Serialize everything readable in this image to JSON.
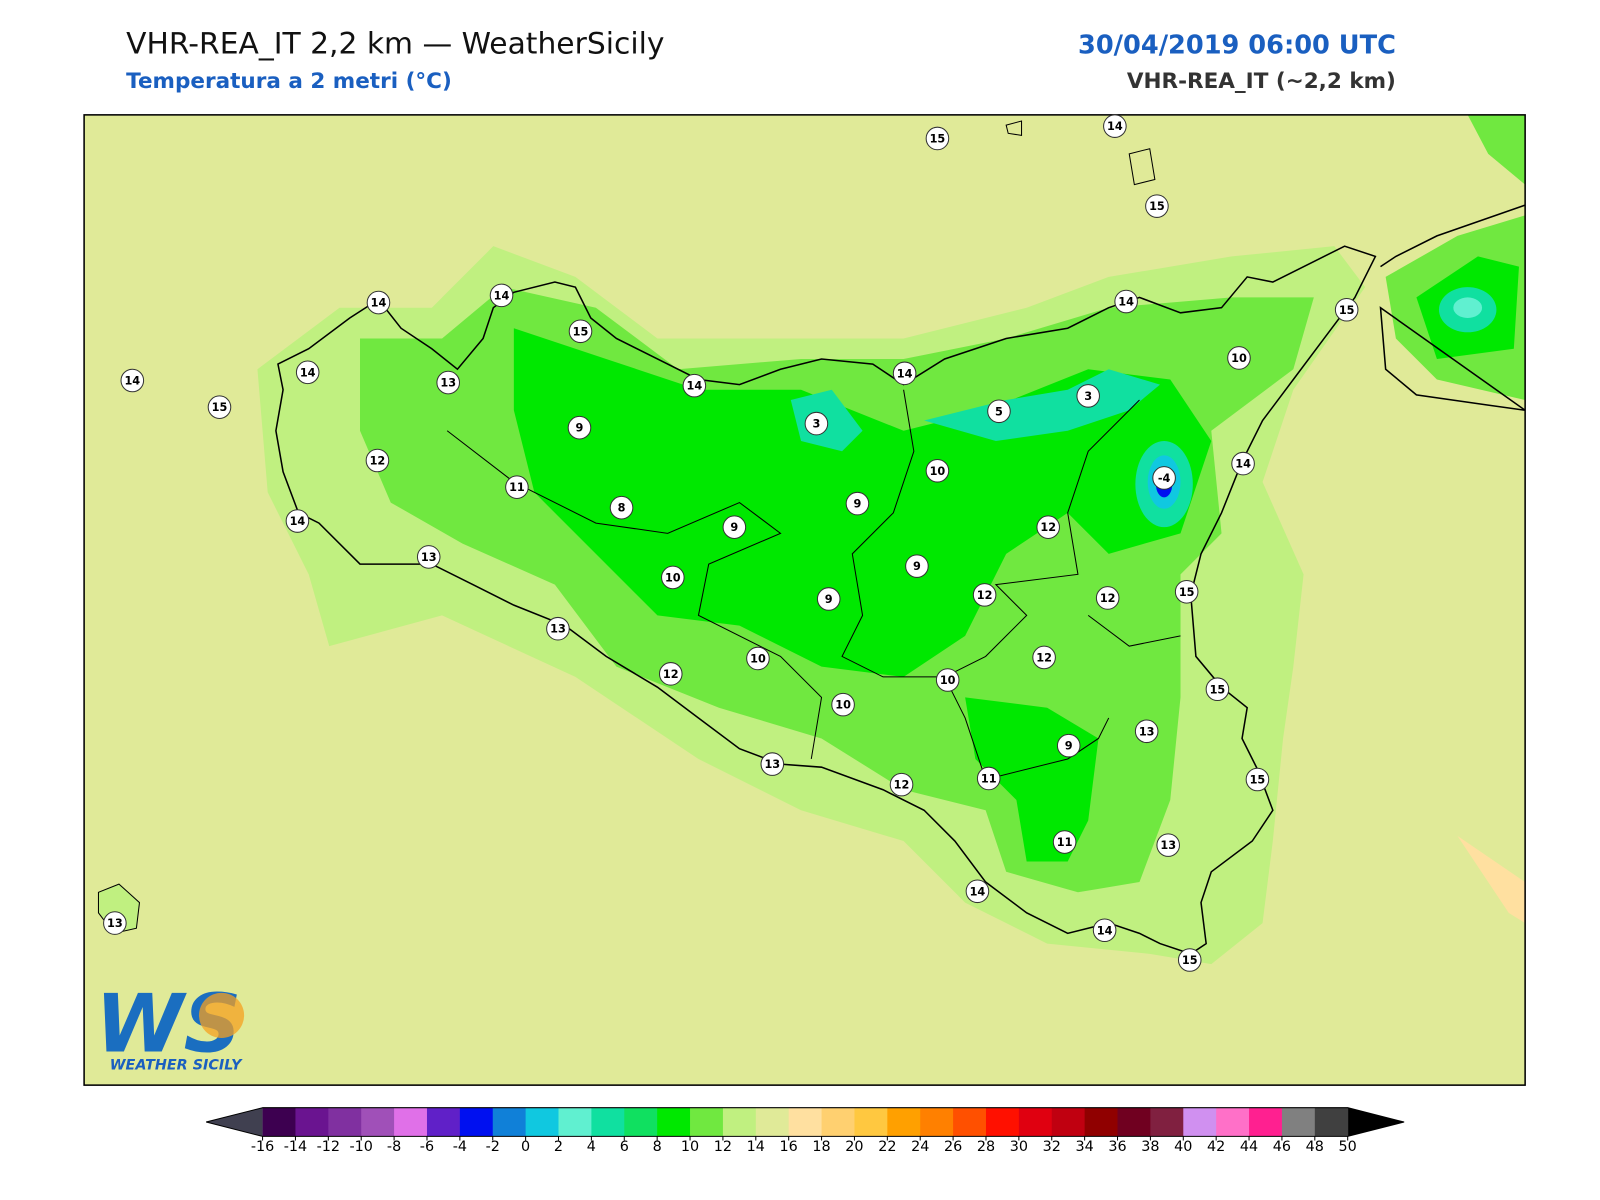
{
  "header": {
    "title": "VHR-REA_IT 2,2 km — WeatherSicily",
    "subtitle": "Temperatura a 2 metri (°C)",
    "date": "30/04/2019 06:00 UTC",
    "model": "VHR-REA_IT (~2,2 km)"
  },
  "map": {
    "stations": [
      15,
      14,
      15,
      14,
      14,
      15,
      14,
      14,
      15,
      13,
      14,
      14,
      14,
      15,
      10,
      3,
      5,
      3,
      9,
      12,
      11,
      8,
      9,
      9,
      10,
      -4,
      14,
      14,
      13,
      12,
      9,
      12,
      12,
      15,
      10,
      9,
      13,
      10,
      12,
      12,
      10,
      10,
      15,
      13,
      9,
      13,
      12,
      11,
      15,
      11,
      13,
      14,
      13,
      14,
      15
    ]
  },
  "colorbar": {
    "ticks": [
      -16,
      -14,
      -12,
      -10,
      -8,
      -6,
      -4,
      -2,
      0,
      2,
      4,
      6,
      8,
      10,
      12,
      14,
      16,
      18,
      20,
      22,
      24,
      26,
      28,
      30,
      32,
      34,
      36,
      38,
      40,
      42,
      44,
      46,
      48,
      50
    ],
    "colors": [
      "#3d0050",
      "#6a1490",
      "#8030a0",
      "#a050b8",
      "#e070e8",
      "#6020c8",
      "#0010f0",
      "#1080d8",
      "#10c8e0",
      "#60f0d0",
      "#10e0a0",
      "#10e060",
      "#00e800",
      "#70e840",
      "#c0f080",
      "#e0ea98",
      "#ffe0a0",
      "#ffd070",
      "#ffc840",
      "#ffa000",
      "#ff8000",
      "#ff5000",
      "#ff1000",
      "#e00010",
      "#c00010",
      "#900000",
      "#700020",
      "#802040",
      "#d090f0",
      "#ff70c8",
      "#ff2090",
      "#808080",
      "#404040"
    ],
    "under_color": "#404050",
    "over_color": "#000000"
  },
  "logo": {
    "mark": "WS",
    "text": "WEATHER SICILY"
  }
}
